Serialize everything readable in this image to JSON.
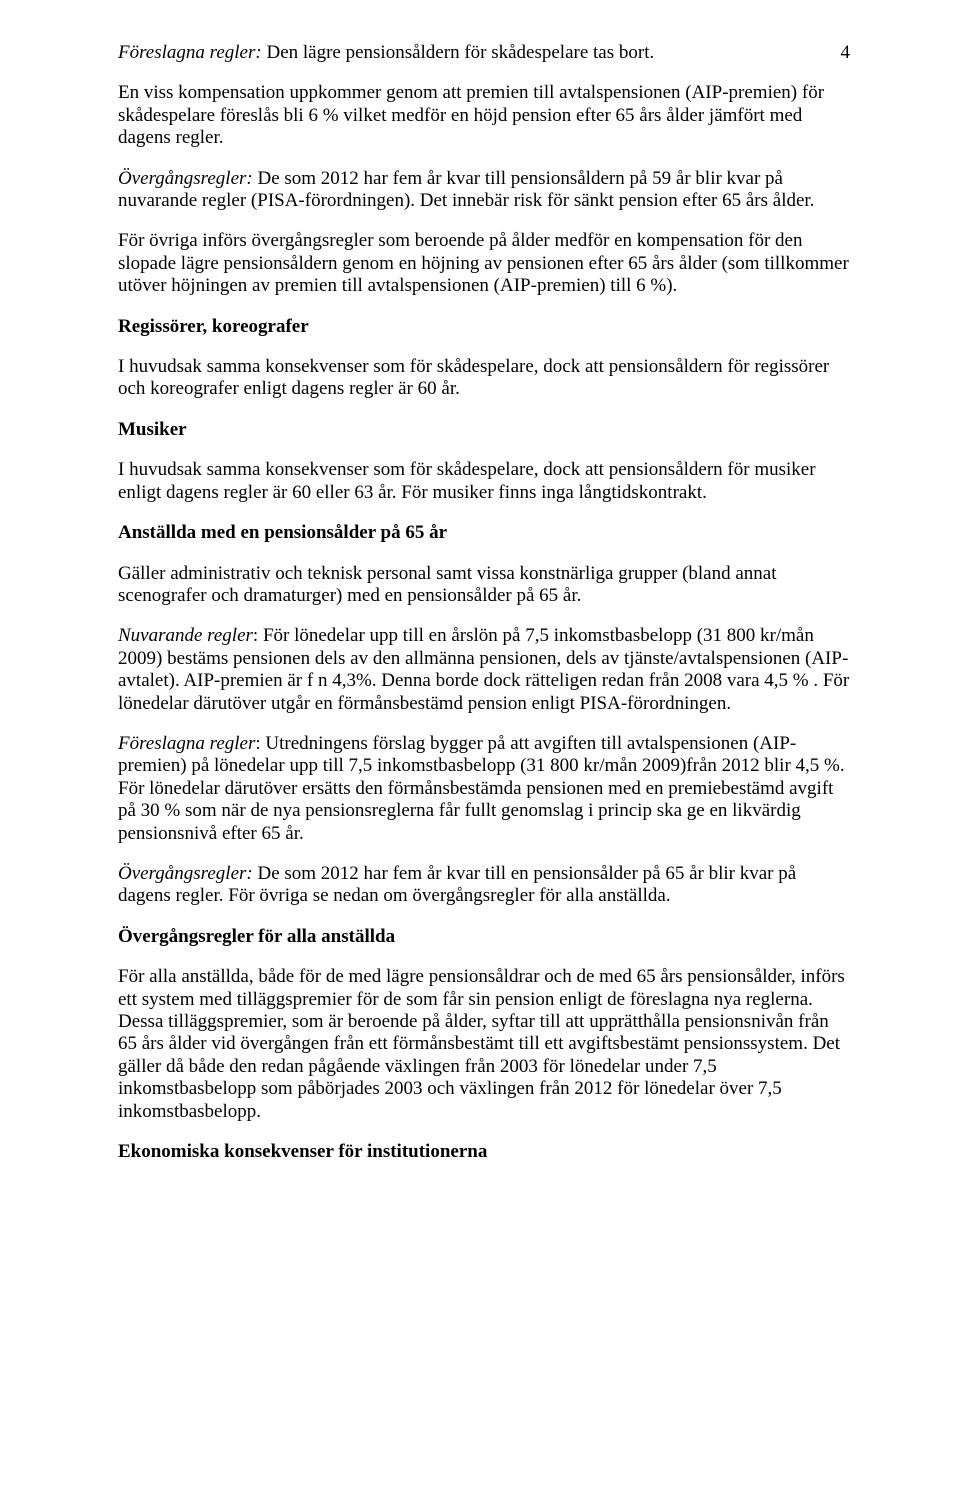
{
  "page_number": "4",
  "p1": {
    "lead_italic": "Föreslagna regler:",
    "rest": " Den lägre pensionsåldern för skådespelare tas bort."
  },
  "p2": "En viss kompensation uppkommer genom att premien till avtalspensionen (AIP-premien) för skådespelare föreslås bli 6 % vilket medför en höjd pension efter 65 års ålder jämfört med dagens regler.",
  "p3": {
    "lead_italic": "Övergångsregler:",
    "rest": " De som 2012 har fem år kvar till pensionsåldern på 59 år blir kvar på nuvarande regler (PISA-förordningen).  Det innebär risk för sänkt pension efter 65 års ålder."
  },
  "p4": "För övriga införs övergångsregler som beroende på ålder medför en  kompensation för den slopade lägre pensionsåldern genom en höjning av pensionen efter 65 års ålder (som tillkommer utöver höjningen av premien till avtalspensionen (AIP-premien) till 6 %).",
  "h1": "Regissörer, koreografer",
  "p5": "I huvudsak samma konsekvenser som för skådespelare, dock att pensionsåldern för regissörer och koreografer enligt dagens regler är 60 år.",
  "h2": "Musiker",
  "p6": "I huvudsak samma konsekvenser som för skådespelare, dock att pensionsåldern för musiker enligt dagens regler är 60 eller 63 år. För musiker finns inga långtidskontrakt.",
  "h3": "Anställda med en pensionsålder på 65 år",
  "p7": "Gäller administrativ och teknisk personal samt vissa konstnärliga grupper (bland annat scenografer och dramaturger) med en pensionsålder på 65 år.",
  "p8": {
    "lead_italic": "Nuvarande regler",
    "rest": ": För lönedelar upp till en årslön på 7,5 inkomstbasbelopp (31 800 kr/mån 2009) bestäms pensionen dels av den allmänna pensionen, dels av tjänste/avtalspensionen (AIP-avtalet). AIP-premien är f n 4,3%. Denna borde dock rätteligen redan från 2008 vara 4,5 % . För lönedelar därutöver utgår en förmånsbestämd pension enligt PISA-förordningen."
  },
  "p9": {
    "lead_italic": "Föreslagna regler",
    "rest": ": Utredningens förslag bygger på att avgiften till avtalspensionen (AIP-premien) på lönedelar upp till 7,5 inkomstbasbelopp (31 800 kr/mån 2009)från 2012 blir 4,5 %. För lönedelar därutöver ersätts den förmånsbestämda pensionen med en premiebestämd avgift på 30 % som när de nya pensionsreglerna får fullt genomslag i princip ska ge en likvärdig pensionsnivå efter 65 år."
  },
  "p10": {
    "lead_italic": "Övergångsregler:",
    "rest": " De som 2012 har fem år kvar till en pensionsålder på 65 år blir kvar på dagens regler. För övriga se nedan om övergångsregler för alla anställda."
  },
  "h4": "Övergångsregler för alla anställda",
  "p11": "För alla anställda, både för de med lägre pensionsåldrar och de med 65 års pensionsålder, införs ett system med tilläggspremier för de som får sin pension enligt de föreslagna nya reglerna. Dessa tilläggspremier, som är beroende på ålder, syftar till att upprätthålla pensionsnivån från 65 års ålder vid övergången från ett förmånsbestämt till ett avgiftsbestämt pensionssystem. Det gäller då både den redan pågående växlingen från 2003 för lönedelar under 7,5 inkomstbasbelopp som påbörjades 2003 och växlingen från 2012 för lönedelar över 7,5 inkomstbasbelopp.",
  "h5": "Ekonomiska konsekvenser för institutionerna"
}
